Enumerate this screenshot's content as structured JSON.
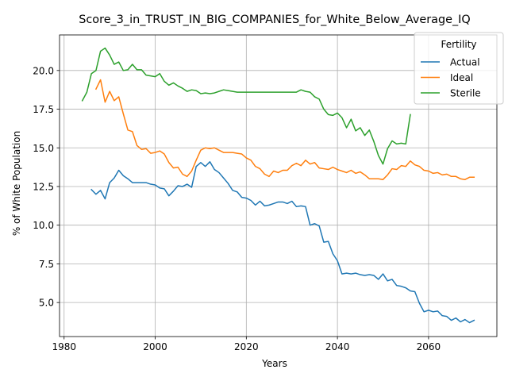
{
  "chart_data": {
    "type": "line",
    "title": "Score_3_in_TRUST_IN_BIG_COMPANIES_for_White_Below_Average_IQ",
    "xlabel": "Years",
    "ylabel": "% of White Population",
    "xlim": [
      1979,
      2075
    ],
    "ylim": [
      2.8,
      22.3
    ],
    "xticks": [
      1980,
      2000,
      2020,
      2040,
      2060
    ],
    "yticks": [
      5.0,
      7.5,
      10.0,
      12.5,
      15.0,
      17.5,
      20.0
    ],
    "xtick_labels": [
      "1980",
      "2000",
      "2020",
      "2040",
      "2060"
    ],
    "ytick_labels": [
      "5.0",
      "7.5",
      "10.0",
      "12.5",
      "15.0",
      "17.5",
      "20.0"
    ],
    "grid": true,
    "legend": {
      "title": "Fertility",
      "placement": "top-right"
    },
    "series": [
      {
        "name": "Actual",
        "color": "#1f77b4",
        "x": [
          1986,
          1987,
          1988,
          1989,
          1990,
          1991,
          1992,
          1993,
          1994,
          1995,
          1996,
          1997,
          1998,
          1999,
          2000,
          2001,
          2002,
          2003,
          2004,
          2005,
          2006,
          2007,
          2008,
          2009,
          2010,
          2011,
          2012,
          2013,
          2014,
          2015,
          2016,
          2017,
          2018,
          2019,
          2020,
          2021,
          2022,
          2023,
          2024,
          2025,
          2026,
          2027,
          2028,
          2029,
          2030,
          2031,
          2032,
          2033,
          2034,
          2035,
          2036,
          2037,
          2038,
          2039,
          2040,
          2041,
          2042,
          2043,
          2044,
          2045,
          2046,
          2047,
          2048,
          2049,
          2050,
          2051,
          2052,
          2053,
          2054,
          2055,
          2056,
          2057,
          2058,
          2059,
          2060,
          2061,
          2062,
          2063,
          2064,
          2065,
          2066,
          2067,
          2068,
          2069,
          2070
        ],
        "y": [
          12.3,
          12.0,
          12.25,
          11.7,
          12.75,
          13.05,
          13.55,
          13.2,
          13.0,
          12.75,
          12.75,
          12.75,
          12.75,
          12.65,
          12.6,
          12.4,
          12.35,
          11.9,
          12.2,
          12.55,
          12.5,
          12.65,
          12.45,
          13.8,
          14.05,
          13.8,
          14.1,
          13.6,
          13.4,
          13.05,
          12.7,
          12.25,
          12.15,
          11.8,
          11.75,
          11.6,
          11.3,
          11.55,
          11.25,
          11.3,
          11.4,
          11.5,
          11.5,
          11.4,
          11.55,
          11.2,
          11.25,
          11.2,
          10.0,
          10.1,
          9.95,
          8.9,
          8.95,
          8.15,
          7.7,
          6.85,
          6.9,
          6.85,
          6.9,
          6.8,
          6.75,
          6.8,
          6.75,
          6.5,
          6.85,
          6.4,
          6.5,
          6.1,
          6.05,
          5.95,
          5.75,
          5.7,
          4.95,
          4.4,
          4.5,
          4.4,
          4.45,
          4.15,
          4.1,
          3.85,
          4.0,
          3.75,
          3.9,
          3.7,
          3.85
        ]
      },
      {
        "name": "Ideal",
        "color": "#ff7f0e",
        "x": [
          1987,
          1988,
          1989,
          1990,
          1991,
          1992,
          1993,
          1994,
          1995,
          1996,
          1997,
          1998,
          1999,
          2000,
          2001,
          2002,
          2003,
          2004,
          2005,
          2006,
          2007,
          2008,
          2009,
          2010,
          2011,
          2012,
          2013,
          2014,
          2015,
          2016,
          2017,
          2018,
          2019,
          2020,
          2021,
          2022,
          2023,
          2024,
          2025,
          2026,
          2027,
          2028,
          2029,
          2030,
          2031,
          2032,
          2033,
          2034,
          2035,
          2036,
          2037,
          2038,
          2039,
          2040,
          2041,
          2042,
          2043,
          2044,
          2045,
          2046,
          2047,
          2048,
          2049,
          2050,
          2051,
          2052,
          2053,
          2054,
          2055,
          2056,
          2057,
          2058,
          2059,
          2060,
          2061,
          2062,
          2063,
          2064,
          2065,
          2066,
          2067,
          2068,
          2069,
          2070
        ],
        "y": [
          18.8,
          19.4,
          17.95,
          18.65,
          18.05,
          18.3,
          17.2,
          16.15,
          16.05,
          15.15,
          14.9,
          14.95,
          14.65,
          14.7,
          14.8,
          14.6,
          14.05,
          13.7,
          13.75,
          13.3,
          13.15,
          13.5,
          14.2,
          14.85,
          15.0,
          14.95,
          15.0,
          14.85,
          14.7,
          14.7,
          14.7,
          14.65,
          14.6,
          14.35,
          14.2,
          13.8,
          13.65,
          13.3,
          13.15,
          13.5,
          13.4,
          13.55,
          13.55,
          13.85,
          14.0,
          13.85,
          14.2,
          13.95,
          14.05,
          13.7,
          13.65,
          13.6,
          13.75,
          13.6,
          13.5,
          13.4,
          13.55,
          13.35,
          13.45,
          13.25,
          13.0,
          13.0,
          13.0,
          12.95,
          13.25,
          13.65,
          13.6,
          13.85,
          13.8,
          14.15,
          13.9,
          13.8,
          13.55,
          13.5,
          13.35,
          13.4,
          13.25,
          13.3,
          13.15,
          13.15,
          13.0,
          12.95,
          13.1,
          13.1
        ]
      },
      {
        "name": "Sterile",
        "color": "#2ca02c",
        "x": [
          1984,
          1985,
          1986,
          1987,
          1988,
          1989,
          1990,
          1991,
          1992,
          1993,
          1994,
          1995,
          1996,
          1997,
          1998,
          1999,
          2000,
          2001,
          2002,
          2003,
          2004,
          2005,
          2006,
          2007,
          2008,
          2009,
          2010,
          2011,
          2012,
          2013,
          2014,
          2015,
          2016,
          2017,
          2018,
          2019,
          2020,
          2021,
          2022,
          2023,
          2024,
          2025,
          2026,
          2027,
          2028,
          2029,
          2030,
          2031,
          2032,
          2033,
          2034,
          2035,
          2036,
          2037,
          2038,
          2039,
          2040,
          2041,
          2042,
          2043,
          2044,
          2045,
          2046,
          2047,
          2048,
          2049,
          2050,
          2051,
          2052,
          2053,
          2054,
          2055,
          2056
        ],
        "y": [
          18.05,
          18.6,
          19.8,
          20.0,
          21.25,
          21.45,
          21.0,
          20.4,
          20.55,
          20.0,
          20.05,
          20.4,
          20.05,
          20.05,
          19.7,
          19.65,
          19.6,
          19.8,
          19.3,
          19.05,
          19.2,
          19.0,
          18.85,
          18.65,
          18.75,
          18.7,
          18.5,
          18.55,
          18.5,
          18.55,
          18.65,
          18.75,
          18.7,
          18.65,
          18.6,
          18.6,
          18.6,
          18.6,
          18.6,
          18.6,
          18.6,
          18.6,
          18.6,
          18.6,
          18.6,
          18.6,
          18.6,
          18.6,
          18.75,
          18.65,
          18.6,
          18.3,
          18.15,
          17.5,
          17.15,
          17.1,
          17.25,
          16.95,
          16.3,
          16.85,
          16.1,
          16.3,
          15.8,
          16.15,
          15.4,
          14.5,
          13.95,
          14.95,
          15.45,
          15.25,
          15.3,
          15.25,
          17.15
        ]
      }
    ]
  }
}
